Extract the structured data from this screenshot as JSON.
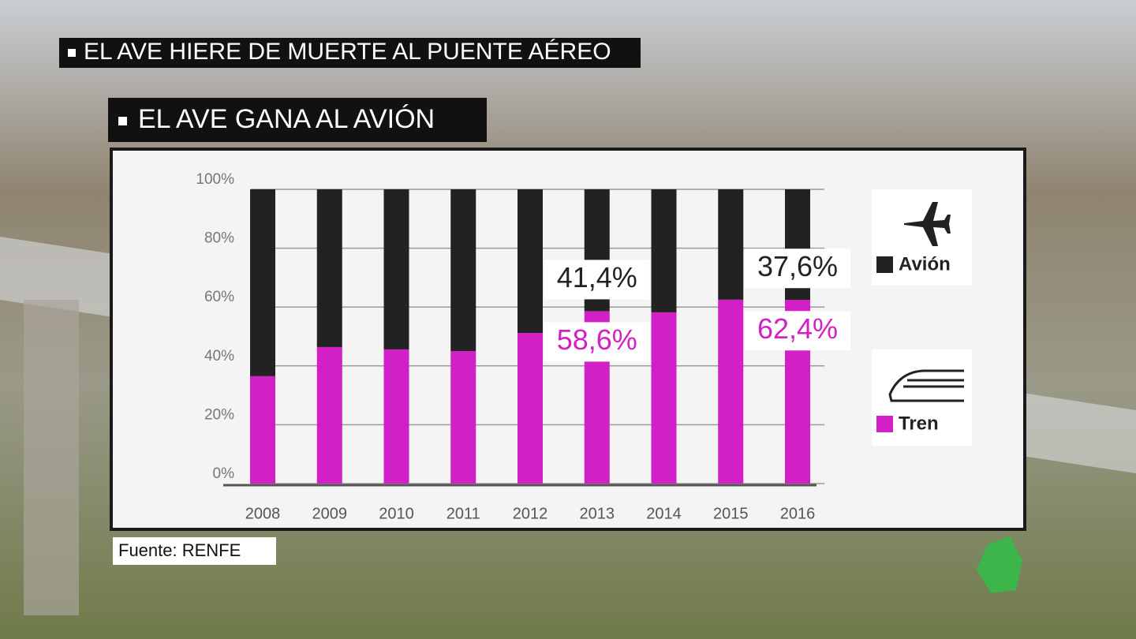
{
  "headline": "EL AVE HIERE DE MUERTE AL PUENTE AÉREO",
  "chart_data": {
    "type": "stacked-bar",
    "title": "EL AVE GANA AL AVIÓN",
    "source": "Fuente: RENFE",
    "categories": [
      "2008",
      "2009",
      "2010",
      "2011",
      "2012",
      "2013",
      "2014",
      "2015",
      "2016"
    ],
    "series": [
      {
        "name": "Tren",
        "color": "#d21fc6",
        "values": [
          36.5,
          46.4,
          45.6,
          45.0,
          51.2,
          58.6,
          58.2,
          62.5,
          62.4
        ],
        "value_labels": [
          null,
          null,
          null,
          null,
          null,
          "58,6%",
          null,
          null,
          "62,4%"
        ]
      },
      {
        "name": "Avión",
        "color": "#222222",
        "values": [
          63.5,
          53.6,
          54.4,
          55.0,
          48.8,
          41.4,
          41.8,
          37.5,
          37.6
        ],
        "value_labels": [
          null,
          null,
          null,
          null,
          null,
          "41,4%",
          null,
          null,
          "37,6%"
        ]
      }
    ],
    "ylim": [
      0,
      100
    ],
    "yticks": [
      {
        "value": 0,
        "label": "0%"
      },
      {
        "value": 20,
        "label": "20%"
      },
      {
        "value": 40,
        "label": "40%"
      },
      {
        "value": 60,
        "label": "60%"
      },
      {
        "value": 80,
        "label": "80%"
      },
      {
        "value": 100,
        "label": "100%"
      }
    ],
    "grid": true
  }
}
